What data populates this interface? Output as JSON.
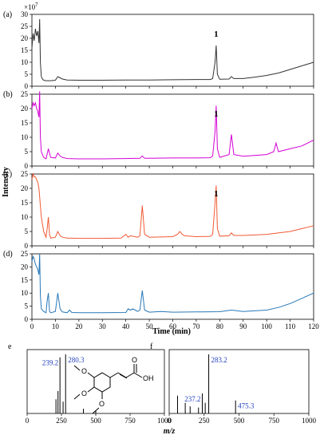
{
  "chart_data": [
    {
      "id": "a",
      "panel_label": "(a)",
      "type": "line",
      "color": "#333333",
      "y_exponent": "×10",
      "y_exponent_power": "7",
      "xlim": [
        0,
        120
      ],
      "ylim": [
        0,
        30
      ],
      "yticks": [
        "0",
        "5",
        "10",
        "15",
        "20",
        "25",
        "30"
      ],
      "peak_label": {
        "text": "1",
        "x": 78.5
      },
      "series": [
        {
          "x": [
            0,
            0.5,
            1,
            1.5,
            2,
            2.5,
            3,
            3.3,
            3.6,
            4,
            4.5,
            5,
            6,
            8,
            10,
            11,
            12,
            13,
            15,
            20,
            30,
            40,
            50,
            60,
            70,
            76,
            77,
            78,
            78.5,
            79,
            80,
            84,
            85,
            86,
            90,
            95,
            100,
            105,
            110,
            115,
            120
          ],
          "y": [
            16,
            22,
            19,
            24,
            21,
            23,
            18,
            28,
            10,
            4,
            3,
            2.5,
            2.3,
            2.3,
            2.5,
            4,
            3.5,
            3,
            2.6,
            2.5,
            2.5,
            2.6,
            2.6,
            2.7,
            2.8,
            2.8,
            3.2,
            10,
            17,
            5,
            2.9,
            3,
            4,
            3.2,
            3.2,
            3.8,
            4.5,
            5.5,
            7,
            8.5,
            10
          ]
        }
      ]
    },
    {
      "id": "b",
      "panel_label": "(b)",
      "type": "line",
      "color": "#d400d4",
      "xlim": [
        0,
        120
      ],
      "ylim": [
        0,
        25
      ],
      "yticks": [
        "0",
        "5",
        "10",
        "15",
        "20",
        "25"
      ],
      "peak_label": {
        "text": "1",
        "x": 78.5
      },
      "series": [
        {
          "x": [
            0,
            0.5,
            1,
            1.5,
            2,
            2.5,
            3,
            3.3,
            3.6,
            4,
            5,
            6,
            7,
            8,
            10,
            11,
            12,
            13,
            15,
            20,
            30,
            40,
            46,
            47,
            48,
            50,
            60,
            70,
            76,
            77,
            78,
            78.5,
            79,
            80,
            84,
            85,
            86,
            90,
            100,
            103,
            104,
            105,
            110,
            115,
            120
          ],
          "y": [
            20,
            22,
            21,
            22,
            20,
            19,
            17,
            26,
            10,
            5,
            3,
            2.5,
            6,
            3,
            2.8,
            4.5,
            3.5,
            3,
            2.6,
            2.5,
            2.5,
            2.6,
            2.7,
            3.5,
            2.7,
            2.7,
            2.8,
            2.8,
            2.9,
            3.5,
            12,
            21,
            6,
            3,
            4,
            11,
            4,
            3.4,
            4,
            5,
            8,
            5,
            6,
            7,
            9
          ]
        }
      ]
    },
    {
      "id": "c",
      "panel_label": "(c)",
      "type": "line",
      "color": "#f05a35",
      "xlim": [
        0,
        120
      ],
      "ylim": [
        0,
        25
      ],
      "yticks": [
        "0",
        "5",
        "10",
        "15",
        "20",
        "25"
      ],
      "peak_label": {
        "text": "1",
        "x": 78.5
      },
      "series": [
        {
          "x": [
            0,
            0.5,
            1,
            1.5,
            2,
            2.5,
            3,
            3.5,
            4,
            5,
            6,
            6.5,
            7,
            7.5,
            8,
            10,
            11,
            12,
            13,
            15,
            20,
            30,
            38,
            40,
            41,
            42,
            45,
            46,
            47,
            48,
            50,
            60,
            62,
            63,
            64,
            65,
            70,
            76,
            77,
            78,
            78.5,
            79,
            80,
            84,
            85,
            86,
            90,
            100,
            110,
            115,
            120
          ],
          "y": [
            23,
            25,
            24,
            24,
            23,
            22,
            20,
            15,
            10,
            5,
            3,
            6,
            10,
            4,
            2.7,
            3,
            5,
            3.5,
            3,
            2.7,
            2.6,
            2.6,
            2.7,
            4,
            3,
            3.5,
            3,
            3.5,
            14,
            4,
            3,
            3.2,
            4,
            5,
            4,
            3.5,
            3.2,
            3.3,
            4,
            15,
            21,
            6,
            3.4,
            3.5,
            4.5,
            3.6,
            3.6,
            4,
            5,
            6,
            7
          ]
        }
      ]
    },
    {
      "id": "d",
      "panel_label": "(d)",
      "type": "line",
      "color": "#2878b8",
      "xlim": [
        0,
        120
      ],
      "ylim": [
        0,
        25
      ],
      "yticks": [
        "0",
        "5",
        "10",
        "15",
        "20",
        "25"
      ],
      "xticks": [
        "0",
        "10",
        "20",
        "30",
        "40",
        "50",
        "60",
        "70",
        "80",
        "90",
        "100",
        "110",
        "120"
      ],
      "xlabel": "Time (min)",
      "series": [
        {
          "x": [
            0,
            0.5,
            1,
            1.5,
            2,
            2.5,
            3,
            3.3,
            3.6,
            4,
            5,
            6,
            6.5,
            7,
            7.5,
            8,
            10,
            11,
            12,
            13,
            15,
            16,
            17,
            20,
            30,
            40,
            41,
            42,
            43,
            44,
            45,
            46,
            47,
            48,
            50,
            55,
            60,
            70,
            80,
            85,
            90,
            100,
            105,
            110,
            115,
            120
          ],
          "y": [
            22,
            24,
            23,
            21,
            20,
            19,
            17,
            25,
            9,
            4,
            3,
            2.5,
            7,
            10,
            3,
            2.5,
            3,
            10,
            4,
            2.8,
            2.5,
            3.5,
            2.6,
            2.5,
            2.5,
            2.6,
            4,
            3.5,
            4,
            3.5,
            3,
            3.5,
            11,
            3.5,
            2.7,
            3,
            2.7,
            2.8,
            2.9,
            3.5,
            3,
            3.5,
            4.5,
            6,
            8,
            10
          ]
        }
      ]
    },
    {
      "id": "e",
      "panel_label": "e",
      "type": "bar",
      "xlim": [
        0,
        1000
      ],
      "xticks": [
        "0",
        "250",
        "500",
        "750",
        "1000"
      ],
      "annotations": [
        "239.2",
        "280.3"
      ],
      "x": [
        210,
        225,
        239.2,
        262,
        280.3,
        410,
        500
      ],
      "y": [
        24,
        38,
        95,
        20,
        100,
        8,
        5
      ]
    },
    {
      "id": "f",
      "panel_label": "f",
      "type": "bar",
      "xlim": [
        0,
        1000
      ],
      "xticks": [
        "0",
        "250",
        "500",
        "750",
        "1000"
      ],
      "annotations": [
        "283.2",
        "237.2",
        "475.3"
      ],
      "x": [
        60,
        115,
        150,
        210,
        237.2,
        258,
        283.2,
        475.3
      ],
      "y": [
        30,
        18,
        12,
        10,
        34,
        18,
        100,
        22
      ]
    }
  ],
  "bottom_xlabel": "m/z",
  "y_axis_title": "Intensity",
  "structure": {
    "label_oh": "OH",
    "label_o": "O"
  }
}
